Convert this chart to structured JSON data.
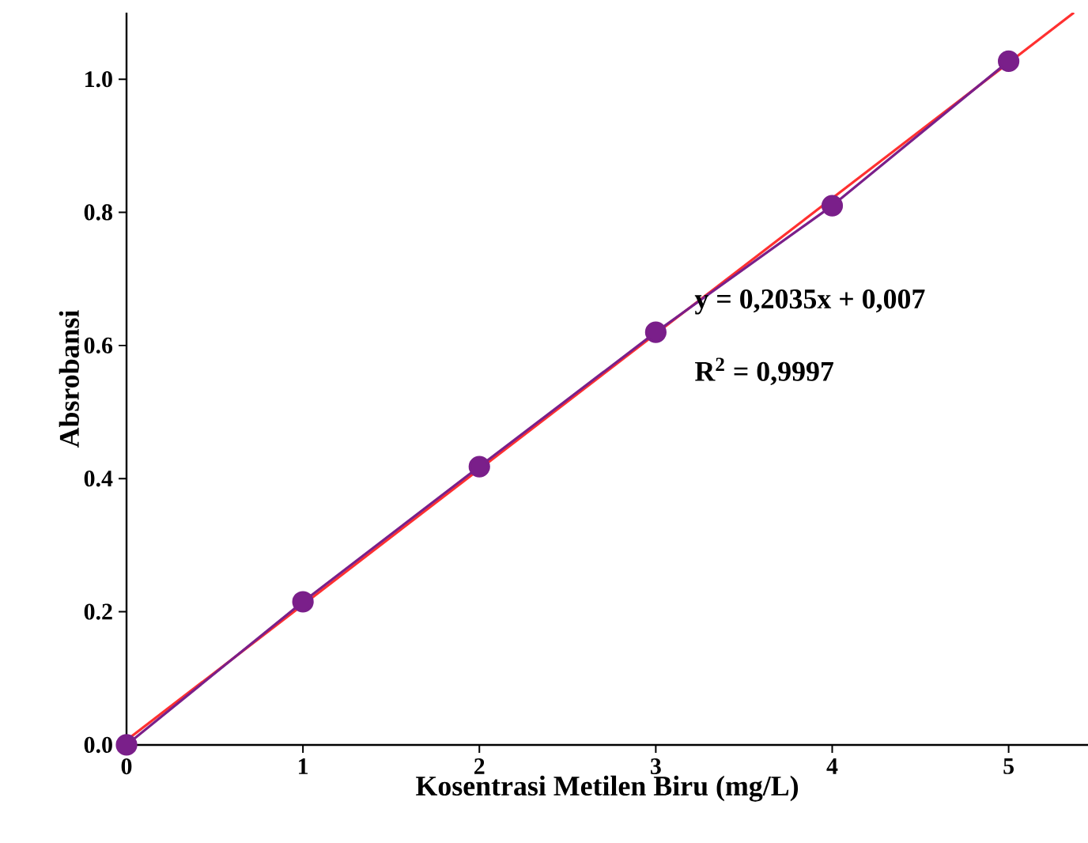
{
  "chart_data": {
    "type": "line",
    "xlabel": "Kosentrasi Metilen Biru (mg/L)",
    "ylabel": "Absrobansi",
    "x": [
      0,
      1,
      2,
      3,
      4,
      5
    ],
    "series": [
      {
        "color": "#7a1f8a",
        "values": [
          0.0,
          0.215,
          0.418,
          0.62,
          0.81,
          1.027
        ],
        "marker": "circle"
      },
      {
        "type": "line",
        "color": "#ff3030",
        "x": [
          0,
          5.37
        ],
        "values": [
          0.007,
          1.1
        ],
        "marker": "none"
      }
    ],
    "xlim": [
      0,
      5.45
    ],
    "ylim": [
      0,
      1.1
    ],
    "xticks": [
      0,
      1,
      2,
      3,
      4,
      5
    ],
    "yticks": [
      {
        "value": 0,
        "label": "0.0"
      },
      {
        "value": 0.2,
        "label": "0.2"
      },
      {
        "value": 0.4,
        "label": "0.4"
      },
      {
        "value": 0.6,
        "label": "0.6"
      },
      {
        "value": 0.8,
        "label": "0.8"
      },
      {
        "value": 1.0,
        "label": "1.0"
      }
    ],
    "annotations": [
      "y = 0,2035x + 0,007",
      "R$^{2}$ = 0,9997"
    ]
  }
}
